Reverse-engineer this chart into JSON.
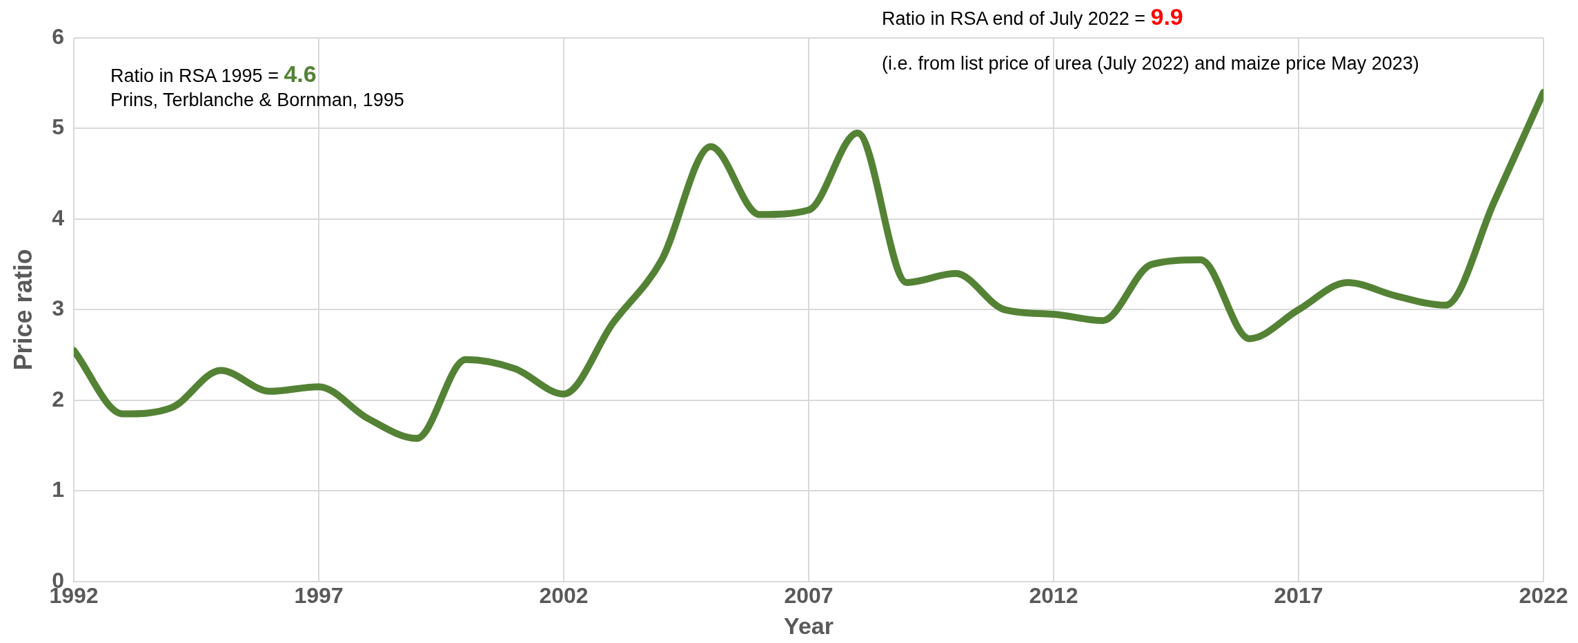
{
  "chart_data": {
    "type": "line",
    "xlabel": "Year",
    "ylabel": "Price ratio",
    "x": [
      1992,
      1993,
      1994,
      1995,
      1996,
      1997,
      1998,
      1999,
      2000,
      2001,
      2002,
      2003,
      2004,
      2005,
      2006,
      2007,
      2008,
      2009,
      2010,
      2011,
      2012,
      2013,
      2014,
      2015,
      2016,
      2017,
      2018,
      2019,
      2020,
      2021,
      2022
    ],
    "series": [
      {
        "color": "#548235",
        "values": [
          2.55,
          1.85,
          1.92,
          2.33,
          2.1,
          2.15,
          1.8,
          1.58,
          2.45,
          2.35,
          2.07,
          2.85,
          3.55,
          4.8,
          4.05,
          4.1,
          4.95,
          3.3,
          3.4,
          3.0,
          2.95,
          2.88,
          3.5,
          3.55,
          2.68,
          3.0,
          3.3,
          3.15,
          3.05,
          4.2,
          5.4
        ]
      }
    ],
    "xlim": [
      1992,
      2022
    ],
    "xticks": [
      1992,
      1997,
      2002,
      2007,
      2012,
      2017,
      2022
    ],
    "ylim": [
      0,
      6
    ],
    "yticks": [
      0,
      1,
      2,
      3,
      4,
      5,
      6
    ],
    "grid": true,
    "legend": false,
    "marker": "none",
    "line_style": "solid",
    "annotations": [
      "Ratio in RSA 1995 = 4.6",
      "Prins, Terblanche & Bornman, 1995",
      "Ratio in RSA end of July 2022 = 9.9",
      "(i.e. from list price of urea (July 2022) and maize price May 2023)"
    ]
  }
}
